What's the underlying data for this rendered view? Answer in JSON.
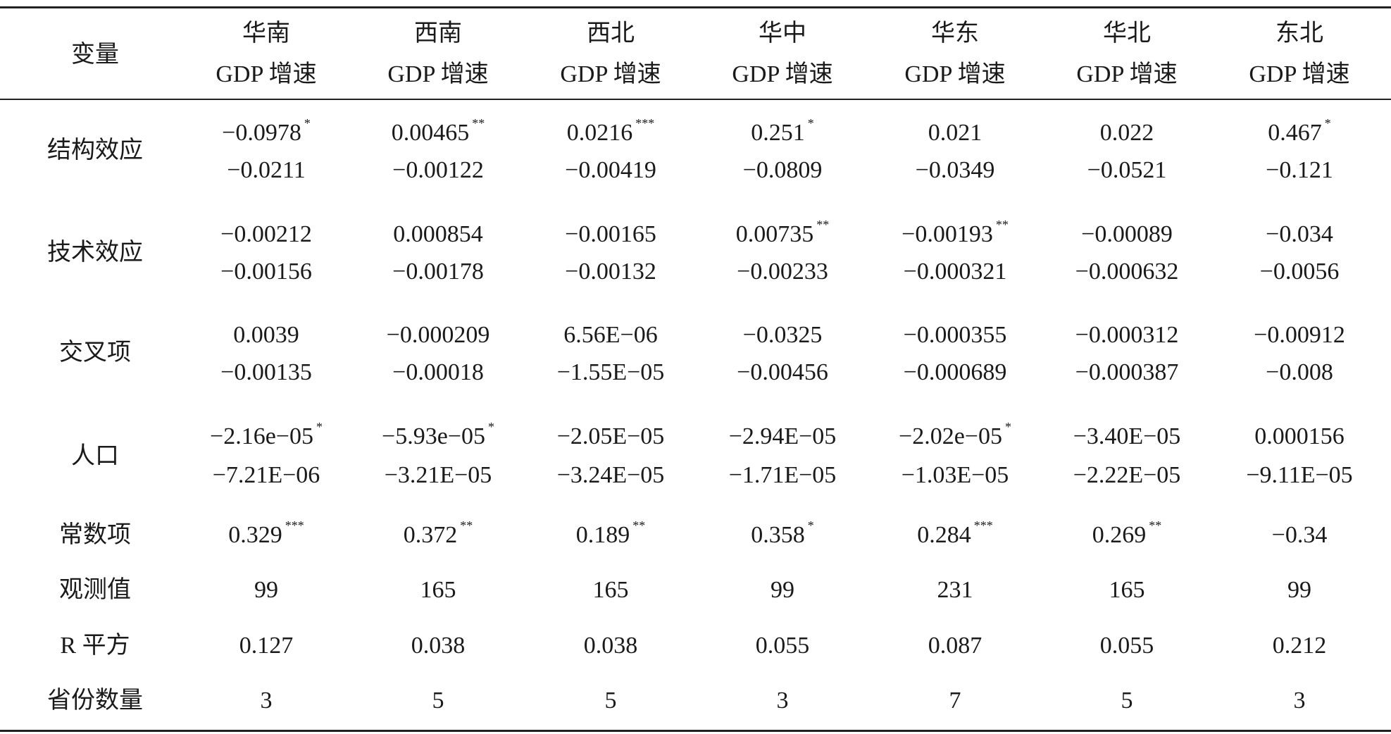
{
  "table": {
    "header": {
      "label": "变量",
      "columns": [
        {
          "region": "华南",
          "measure": "GDP 增速"
        },
        {
          "region": "西南",
          "measure": "GDP 增速"
        },
        {
          "region": "西北",
          "measure": "GDP 增速"
        },
        {
          "region": "华中",
          "measure": "GDP 增速"
        },
        {
          "region": "华东",
          "measure": "GDP 增速"
        },
        {
          "region": "华北",
          "measure": "GDP 增速"
        },
        {
          "region": "东北",
          "measure": "GDP 增速"
        }
      ]
    },
    "rows": [
      {
        "label": "结构效应",
        "cells": [
          {
            "value": "−0.0978",
            "stars": "*",
            "se": "−0.0211"
          },
          {
            "value": "0.00465",
            "stars": "**",
            "se": "−0.00122"
          },
          {
            "value": "0.0216",
            "stars": "***",
            "se": "−0.00419"
          },
          {
            "value": "0.251",
            "stars": "*",
            "se": "−0.0809"
          },
          {
            "value": "0.021",
            "se": "−0.0349"
          },
          {
            "value": "0.022",
            "se": "−0.0521"
          },
          {
            "value": "0.467",
            "stars": "*",
            "se": "−0.121"
          }
        ]
      },
      {
        "label": "技术效应",
        "cells": [
          {
            "value": "−0.00212",
            "se": "−0.00156"
          },
          {
            "value": "0.000854",
            "se": "−0.00178"
          },
          {
            "value": "−0.00165",
            "se": "−0.00132"
          },
          {
            "value": "0.00735",
            "stars": "**",
            "se": "−0.00233"
          },
          {
            "value": "−0.00193",
            "stars": "**",
            "se": "−0.000321"
          },
          {
            "value": "−0.00089",
            "se": "−0.000632"
          },
          {
            "value": "−0.034",
            "se": "−0.0056"
          }
        ]
      },
      {
        "label": "交叉项",
        "cells": [
          {
            "value": "0.0039",
            "se": "−0.00135"
          },
          {
            "value": "−0.000209",
            "se": "−0.00018"
          },
          {
            "value": "6.56E−06",
            "se": "−1.55E−05"
          },
          {
            "value": "−0.0325",
            "se": "−0.00456"
          },
          {
            "value": "−0.000355",
            "se": "−0.000689"
          },
          {
            "value": "−0.000312",
            "se": "−0.000387"
          },
          {
            "value": "−0.00912",
            "se": "−0.008"
          }
        ]
      },
      {
        "label": "人口",
        "cells": [
          {
            "value": "−2.16e−05",
            "stars": "*",
            "se": "−7.21E−06"
          },
          {
            "value": "−5.93e−05",
            "stars": "*",
            "se": "−3.21E−05"
          },
          {
            "value": "−2.05E−05",
            "se": "−3.24E−05"
          },
          {
            "value": "−2.94E−05",
            "se": "−1.71E−05"
          },
          {
            "value": "−2.02e−05",
            "stars": "*",
            "se": "−1.03E−05"
          },
          {
            "value": "−3.40E−05",
            "se": "−2.22E−05"
          },
          {
            "value": "0.000156",
            "se": "−9.11E−05"
          }
        ]
      },
      {
        "label": "常数项",
        "cells": [
          {
            "value": "0.329",
            "stars": "***"
          },
          {
            "value": "0.372",
            "stars": "**"
          },
          {
            "value": "0.189",
            "stars": "**"
          },
          {
            "value": "0.358",
            "stars": "*"
          },
          {
            "value": "0.284",
            "stars": "***"
          },
          {
            "value": "0.269",
            "stars": "**"
          },
          {
            "value": "−0.34"
          }
        ]
      },
      {
        "label": "观测值",
        "cells": [
          {
            "value": "99"
          },
          {
            "value": "165"
          },
          {
            "value": "165"
          },
          {
            "value": "99"
          },
          {
            "value": "231"
          },
          {
            "value": "165"
          },
          {
            "value": "99"
          }
        ]
      },
      {
        "label": "R 平方",
        "cells": [
          {
            "value": "0.127"
          },
          {
            "value": "0.038"
          },
          {
            "value": "0.038"
          },
          {
            "value": "0.055"
          },
          {
            "value": "0.087"
          },
          {
            "value": "0.055"
          },
          {
            "value": "0.212"
          }
        ]
      },
      {
        "label": "省份数量",
        "cells": [
          {
            "value": "3"
          },
          {
            "value": "5"
          },
          {
            "value": "5"
          },
          {
            "value": "3"
          },
          {
            "value": "7"
          },
          {
            "value": "5"
          },
          {
            "value": "3"
          }
        ]
      }
    ]
  }
}
